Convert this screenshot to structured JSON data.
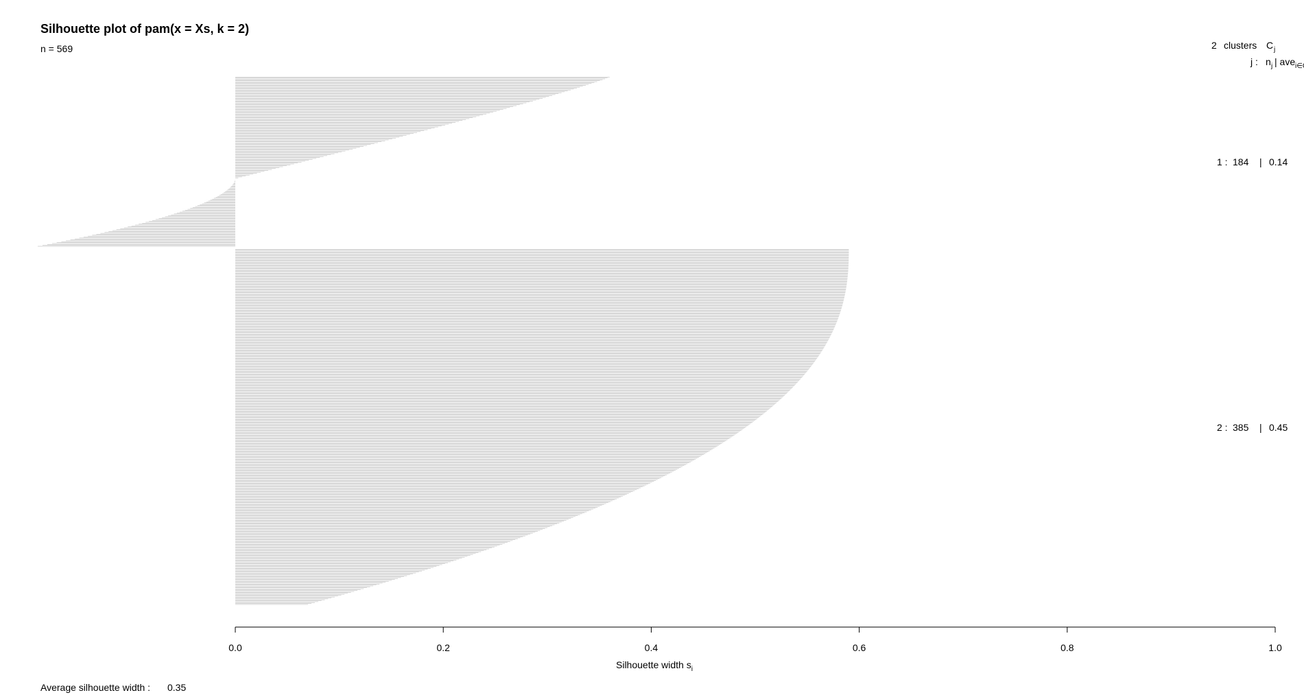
{
  "chart_data": {
    "type": "bar",
    "orientation": "horizontal",
    "title": "Silhouette plot of pam(x = Xs, k = 2)",
    "subtitle": "n = 569",
    "xlabel": "Silhouette width s",
    "xlabel_sub": "i",
    "xlim": [
      0.0,
      1.0
    ],
    "xticks": [
      "0.0",
      "0.2",
      "0.4",
      "0.6",
      "0.8",
      "1.0"
    ],
    "bar_color": "#bebebe",
    "legend_header": {
      "count": "2",
      "clusters_label": "clusters",
      "C": "C",
      "C_sub": "j",
      "j_label": "j :",
      "n": "n",
      "n_sub": "j",
      "ave_label": "| ave",
      "ave_sub": "i∈Cj"
    },
    "clusters": [
      {
        "label": "1 :",
        "n": "184",
        "sep": "|",
        "avg": "0.14",
        "s_max": 0.36,
        "s_zero_frac": 0.6,
        "s_min": -0.19
      },
      {
        "label": "2 :",
        "n": "385",
        "sep": "|",
        "avg": "0.45",
        "s_max": 0.59,
        "s_min": 0.07
      }
    ],
    "footer": {
      "label": "Average silhouette width :",
      "value": "0.35"
    }
  }
}
